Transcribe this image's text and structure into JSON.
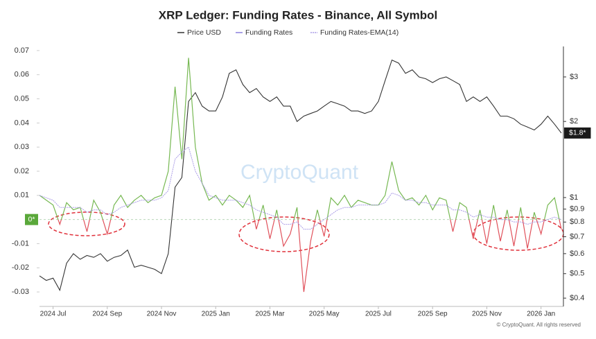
{
  "chart_data": {
    "type": "line",
    "title": "XRP Ledger: Funding Rates - Binance, All Symbol",
    "watermark": "CryptoQuant",
    "footer": "© CryptoQuant. All rights reserved",
    "categories": [
      null,
      null,
      "2024 Jul",
      null,
      null,
      null,
      null,
      null,
      null,
      null,
      "2024 Sep",
      null,
      null,
      null,
      null,
      null,
      null,
      null,
      "2024 Nov",
      null,
      null,
      null,
      null,
      null,
      null,
      null,
      "2025 Jan",
      null,
      null,
      null,
      null,
      null,
      null,
      null,
      "2025 Mar",
      null,
      null,
      null,
      null,
      null,
      null,
      null,
      "2025 May",
      null,
      null,
      null,
      null,
      null,
      null,
      null,
      "2025 Jul",
      null,
      null,
      null,
      null,
      null,
      null,
      null,
      "2025 Sep",
      null,
      null,
      null,
      null,
      null,
      null,
      null,
      "2025 Nov",
      null,
      null,
      null,
      null,
      null,
      null,
      null,
      "2026 Jan",
      null,
      null,
      null
    ],
    "series": [
      {
        "name": "Price USD",
        "color": "#333333",
        "axis": "y2",
        "values": [
          0.49,
          0.47,
          0.48,
          0.43,
          0.55,
          0.6,
          0.57,
          0.59,
          0.58,
          0.6,
          0.56,
          0.58,
          0.59,
          0.62,
          0.53,
          0.54,
          0.53,
          0.52,
          0.5,
          0.6,
          1.1,
          1.2,
          2.4,
          2.6,
          2.3,
          2.2,
          2.2,
          2.5,
          3.1,
          3.2,
          2.8,
          2.6,
          2.7,
          2.5,
          2.4,
          2.5,
          2.3,
          2.3,
          2.0,
          2.1,
          2.15,
          2.2,
          2.3,
          2.4,
          2.35,
          2.3,
          2.2,
          2.2,
          2.15,
          2.2,
          2.4,
          2.9,
          3.5,
          3.4,
          3.1,
          3.2,
          3.0,
          2.95,
          2.85,
          2.95,
          3.0,
          2.9,
          2.8,
          2.4,
          2.5,
          2.4,
          2.5,
          2.3,
          2.1,
          2.1,
          2.05,
          1.95,
          1.9,
          1.85,
          1.95,
          2.1,
          1.95,
          1.8
        ]
      },
      {
        "name": "Funding Rates",
        "color": "#8a7fdc",
        "positive_color": "#76b852",
        "negative_color": "#e0505a",
        "values": [
          0.01,
          0.008,
          0.006,
          -0.002,
          0.007,
          0.004,
          0.005,
          -0.005,
          0.008,
          0.003,
          -0.006,
          0.006,
          0.01,
          0.005,
          0.008,
          0.01,
          0.007,
          0.009,
          0.01,
          0.02,
          0.055,
          0.025,
          0.067,
          0.03,
          0.015,
          0.008,
          0.01,
          0.006,
          0.01,
          0.008,
          0.005,
          0.01,
          -0.004,
          0.006,
          -0.008,
          0.004,
          -0.011,
          -0.006,
          0.005,
          -0.03,
          -0.009,
          0.004,
          -0.007,
          0.009,
          0.006,
          0.01,
          0.005,
          0.008,
          0.007,
          0.006,
          0.006,
          0.01,
          0.024,
          0.012,
          0.008,
          0.009,
          0.006,
          0.01,
          0.004,
          0.009,
          0.008,
          -0.005,
          0.007,
          0.005,
          -0.008,
          0.004,
          -0.01,
          0.006,
          -0.009,
          0.004,
          -0.011,
          0.005,
          -0.012,
          0.003,
          -0.006,
          0.006,
          0.009,
          -0.004
        ]
      },
      {
        "name": "Funding Rates-EMA(14)",
        "color": "#a99be6",
        "dashed": true,
        "values": [
          0.01,
          0.009,
          0.008,
          0.005,
          0.005,
          0.005,
          0.005,
          0.003,
          0.004,
          0.004,
          0.002,
          0.003,
          0.005,
          0.006,
          0.007,
          0.008,
          0.008,
          0.008,
          0.009,
          0.012,
          0.025,
          0.028,
          0.03,
          0.02,
          0.015,
          0.01,
          0.009,
          0.008,
          0.008,
          0.008,
          0.007,
          0.006,
          0.004,
          0.003,
          0.002,
          0.001,
          -0.002,
          -0.002,
          -0.001,
          -0.004,
          -0.004,
          -0.002,
          0,
          0.002,
          0.004,
          0.005,
          0.005,
          0.006,
          0.006,
          0.006,
          0.006,
          0.007,
          0.011,
          0.01,
          0.008,
          0.008,
          0.007,
          0.007,
          0.006,
          0.006,
          0.006,
          0.004,
          0.004,
          0.003,
          0.001,
          0.002,
          0.001,
          0.001,
          0,
          0,
          -0.001,
          -0.001,
          -0.002,
          -0.001,
          -0.001,
          0,
          0.001,
          0
        ]
      }
    ],
    "ylim": [
      -0.036,
      0.0717
    ],
    "yticks": [
      -0.03,
      -0.02,
      -0.01,
      0,
      0.01,
      0.02,
      0.03,
      0.04,
      0.05,
      0.06,
      0.07
    ],
    "y2lim": [
      0.371,
      3.96
    ],
    "y2_log": true,
    "y2ticks": [
      {
        "value": 0.4,
        "label": "$0.4"
      },
      {
        "value": 0.5,
        "label": "$0.5"
      },
      {
        "value": 0.6,
        "label": "$0.6"
      },
      {
        "value": 0.7,
        "label": "$0.7"
      },
      {
        "value": 0.8,
        "label": "$0.8"
      },
      {
        "value": 0.9,
        "label": "$0.9"
      },
      {
        "value": 1,
        "label": "$1"
      },
      {
        "value": 2,
        "label": "$2"
      },
      {
        "value": 3,
        "label": "$3"
      }
    ],
    "current_labels": [
      {
        "value": 0,
        "label": "0*",
        "axis": "y",
        "color": "#5aa83a"
      },
      {
        "value": 1.8,
        "label": "$1.8*",
        "axis": "y2",
        "color": "#1a1a1a"
      }
    ],
    "legend": "top"
  }
}
